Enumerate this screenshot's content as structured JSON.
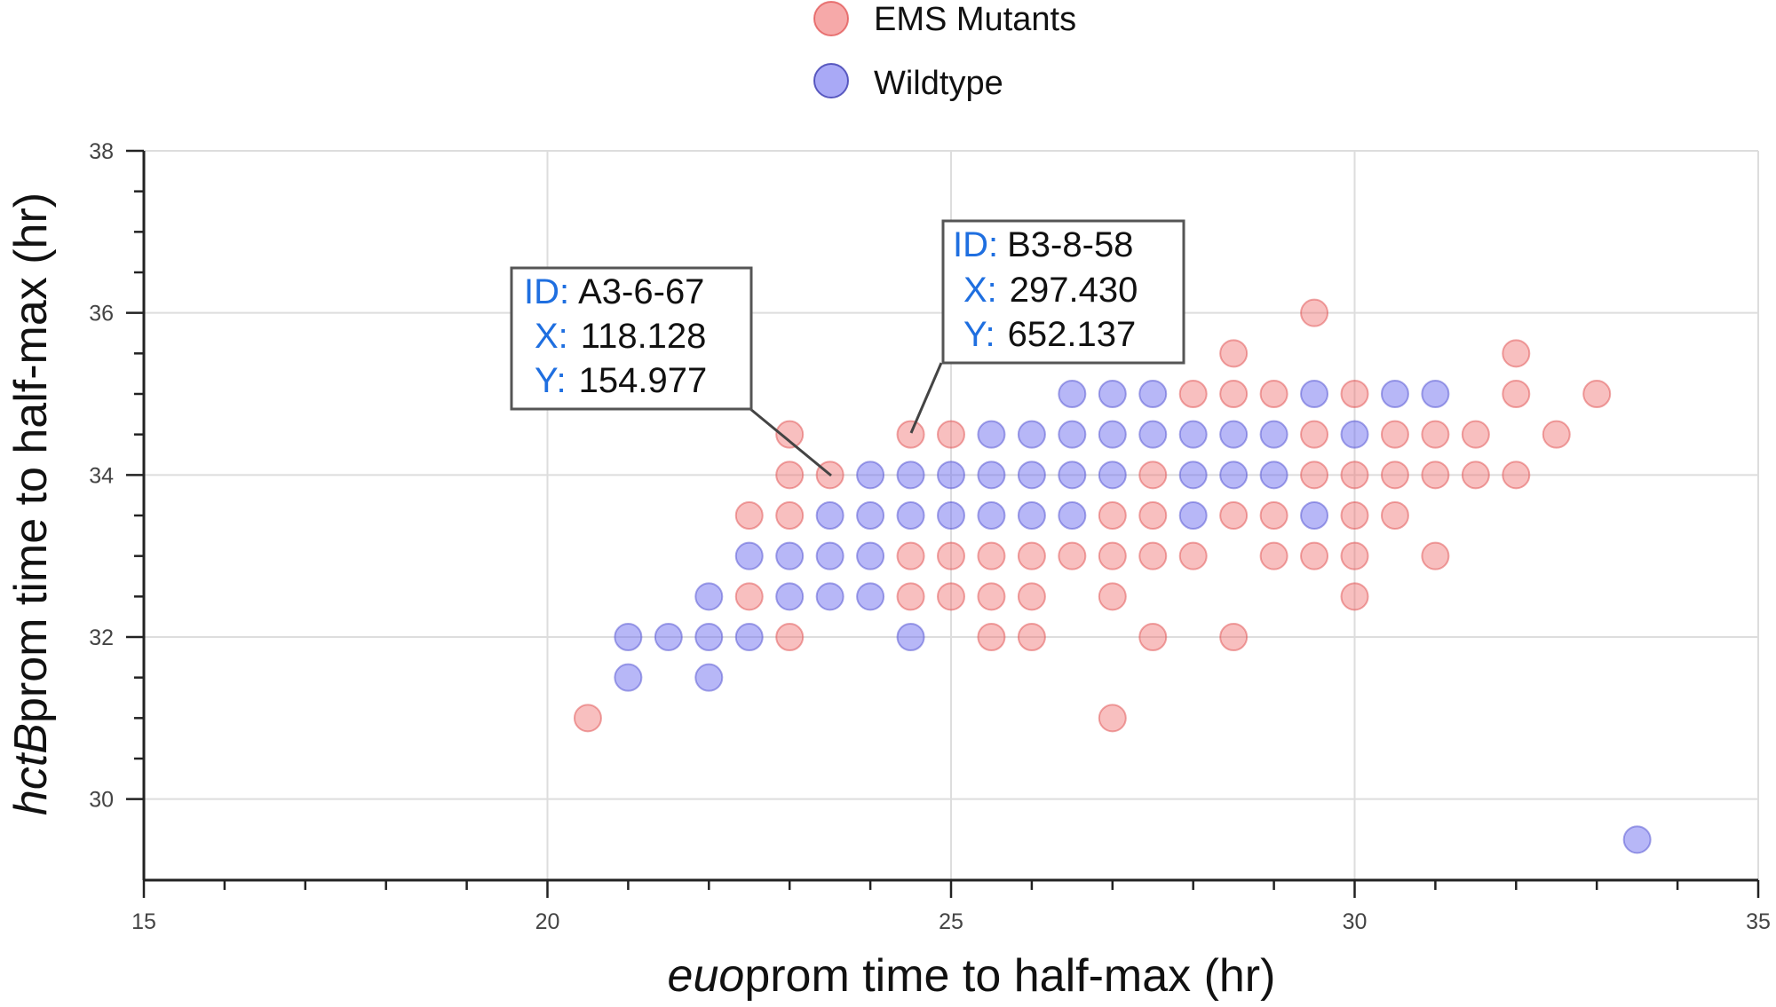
{
  "chart_data": {
    "type": "scatter",
    "xlabel_italic": "euo",
    "xlabel_rest": "prom time to half-max (hr)",
    "ylabel_italic": "hctB",
    "ylabel_rest": "prom time to half-max (hr)",
    "xlim": [
      15,
      35
    ],
    "ylim": [
      29,
      38
    ],
    "x_ticks": [
      15,
      20,
      25,
      30,
      35
    ],
    "y_ticks": [
      30,
      32,
      34,
      36,
      38
    ],
    "x_minor_step": 1,
    "y_minor_step": 0.5,
    "grid": true,
    "legend_position": "top-center",
    "series": [
      {
        "name": "EMS Mutants",
        "color": "#f07070",
        "points": [
          [
            20.5,
            31
          ],
          [
            23,
            34.5
          ],
          [
            23,
            34
          ],
          [
            23,
            33.5
          ],
          [
            23,
            32
          ],
          [
            22.5,
            33.5
          ],
          [
            22.5,
            32.5
          ],
          [
            23.5,
            34
          ],
          [
            24.5,
            34.5
          ],
          [
            24.5,
            33
          ],
          [
            24.5,
            32.5
          ],
          [
            25,
            34.5
          ],
          [
            25,
            33
          ],
          [
            25,
            32.5
          ],
          [
            25.5,
            33
          ],
          [
            25.5,
            32.5
          ],
          [
            25.5,
            32
          ],
          [
            26,
            33
          ],
          [
            26,
            32.5
          ],
          [
            26,
            32
          ],
          [
            26.5,
            33
          ],
          [
            27,
            33.5
          ],
          [
            27,
            33
          ],
          [
            27,
            32.5
          ],
          [
            27,
            31
          ],
          [
            27.5,
            34
          ],
          [
            27.5,
            33.5
          ],
          [
            27.5,
            33
          ],
          [
            27.5,
            32
          ],
          [
            28,
            35
          ],
          [
            28,
            33
          ],
          [
            28.5,
            35.5
          ],
          [
            28.5,
            35
          ],
          [
            28.5,
            33.5
          ],
          [
            28.5,
            32
          ],
          [
            29,
            35
          ],
          [
            29,
            33.5
          ],
          [
            29,
            33
          ],
          [
            29.5,
            36
          ],
          [
            29.5,
            34.5
          ],
          [
            29.5,
            34
          ],
          [
            29.5,
            33
          ],
          [
            30,
            35
          ],
          [
            30,
            34
          ],
          [
            30,
            33.5
          ],
          [
            30,
            33
          ],
          [
            30,
            32.5
          ],
          [
            30.5,
            34.5
          ],
          [
            30.5,
            34
          ],
          [
            30.5,
            33.5
          ],
          [
            31,
            34.5
          ],
          [
            31,
            34
          ],
          [
            31,
            33
          ],
          [
            31.5,
            34.5
          ],
          [
            31.5,
            34
          ],
          [
            32,
            35.5
          ],
          [
            32,
            35
          ],
          [
            32,
            34
          ],
          [
            32.5,
            34.5
          ],
          [
            33,
            35
          ]
        ]
      },
      {
        "name": "Wildtype",
        "color": "#7070f0",
        "points": [
          [
            21,
            32
          ],
          [
            21,
            31.5
          ],
          [
            21.5,
            32
          ],
          [
            22,
            32.5
          ],
          [
            22,
            32
          ],
          [
            22,
            31.5
          ],
          [
            22.5,
            33
          ],
          [
            22.5,
            32
          ],
          [
            23,
            33
          ],
          [
            23,
            32.5
          ],
          [
            23.5,
            33.5
          ],
          [
            23.5,
            33
          ],
          [
            23.5,
            32.5
          ],
          [
            24,
            34
          ],
          [
            24,
            33.5
          ],
          [
            24,
            33
          ],
          [
            24,
            32.5
          ],
          [
            24.5,
            34
          ],
          [
            24.5,
            33.5
          ],
          [
            24.5,
            32
          ],
          [
            25,
            34
          ],
          [
            25,
            33.5
          ],
          [
            25.5,
            34.5
          ],
          [
            25.5,
            34
          ],
          [
            25.5,
            33.5
          ],
          [
            26,
            34.5
          ],
          [
            26,
            34
          ],
          [
            26,
            33.5
          ],
          [
            26.5,
            35
          ],
          [
            26.5,
            34.5
          ],
          [
            26.5,
            34
          ],
          [
            26.5,
            33.5
          ],
          [
            27,
            35
          ],
          [
            27,
            34.5
          ],
          [
            27,
            34
          ],
          [
            27.5,
            35
          ],
          [
            27.5,
            34.5
          ],
          [
            28,
            34.5
          ],
          [
            28,
            34
          ],
          [
            28,
            33.5
          ],
          [
            28.5,
            34.5
          ],
          [
            28.5,
            34
          ],
          [
            29,
            34.5
          ],
          [
            29,
            34
          ],
          [
            29.5,
            35
          ],
          [
            29.5,
            33.5
          ],
          [
            30,
            34.5
          ],
          [
            30.5,
            35
          ],
          [
            31,
            35
          ],
          [
            33.5,
            29.5
          ]
        ]
      }
    ],
    "annotations": [
      {
        "id_label": "ID:",
        "id_value": "A3-6-67",
        "x_label": "X:",
        "x_value": "118.128",
        "y_label": "Y:",
        "y_value": "154.977",
        "anchor": [
          23.5,
          34
        ]
      },
      {
        "id_label": "ID:",
        "id_value": "B3-8-58",
        "x_label": "X:",
        "x_value": "297.430",
        "y_label": "Y:",
        "y_value": "652.137",
        "anchor": [
          24.5,
          34.5
        ]
      }
    ]
  }
}
